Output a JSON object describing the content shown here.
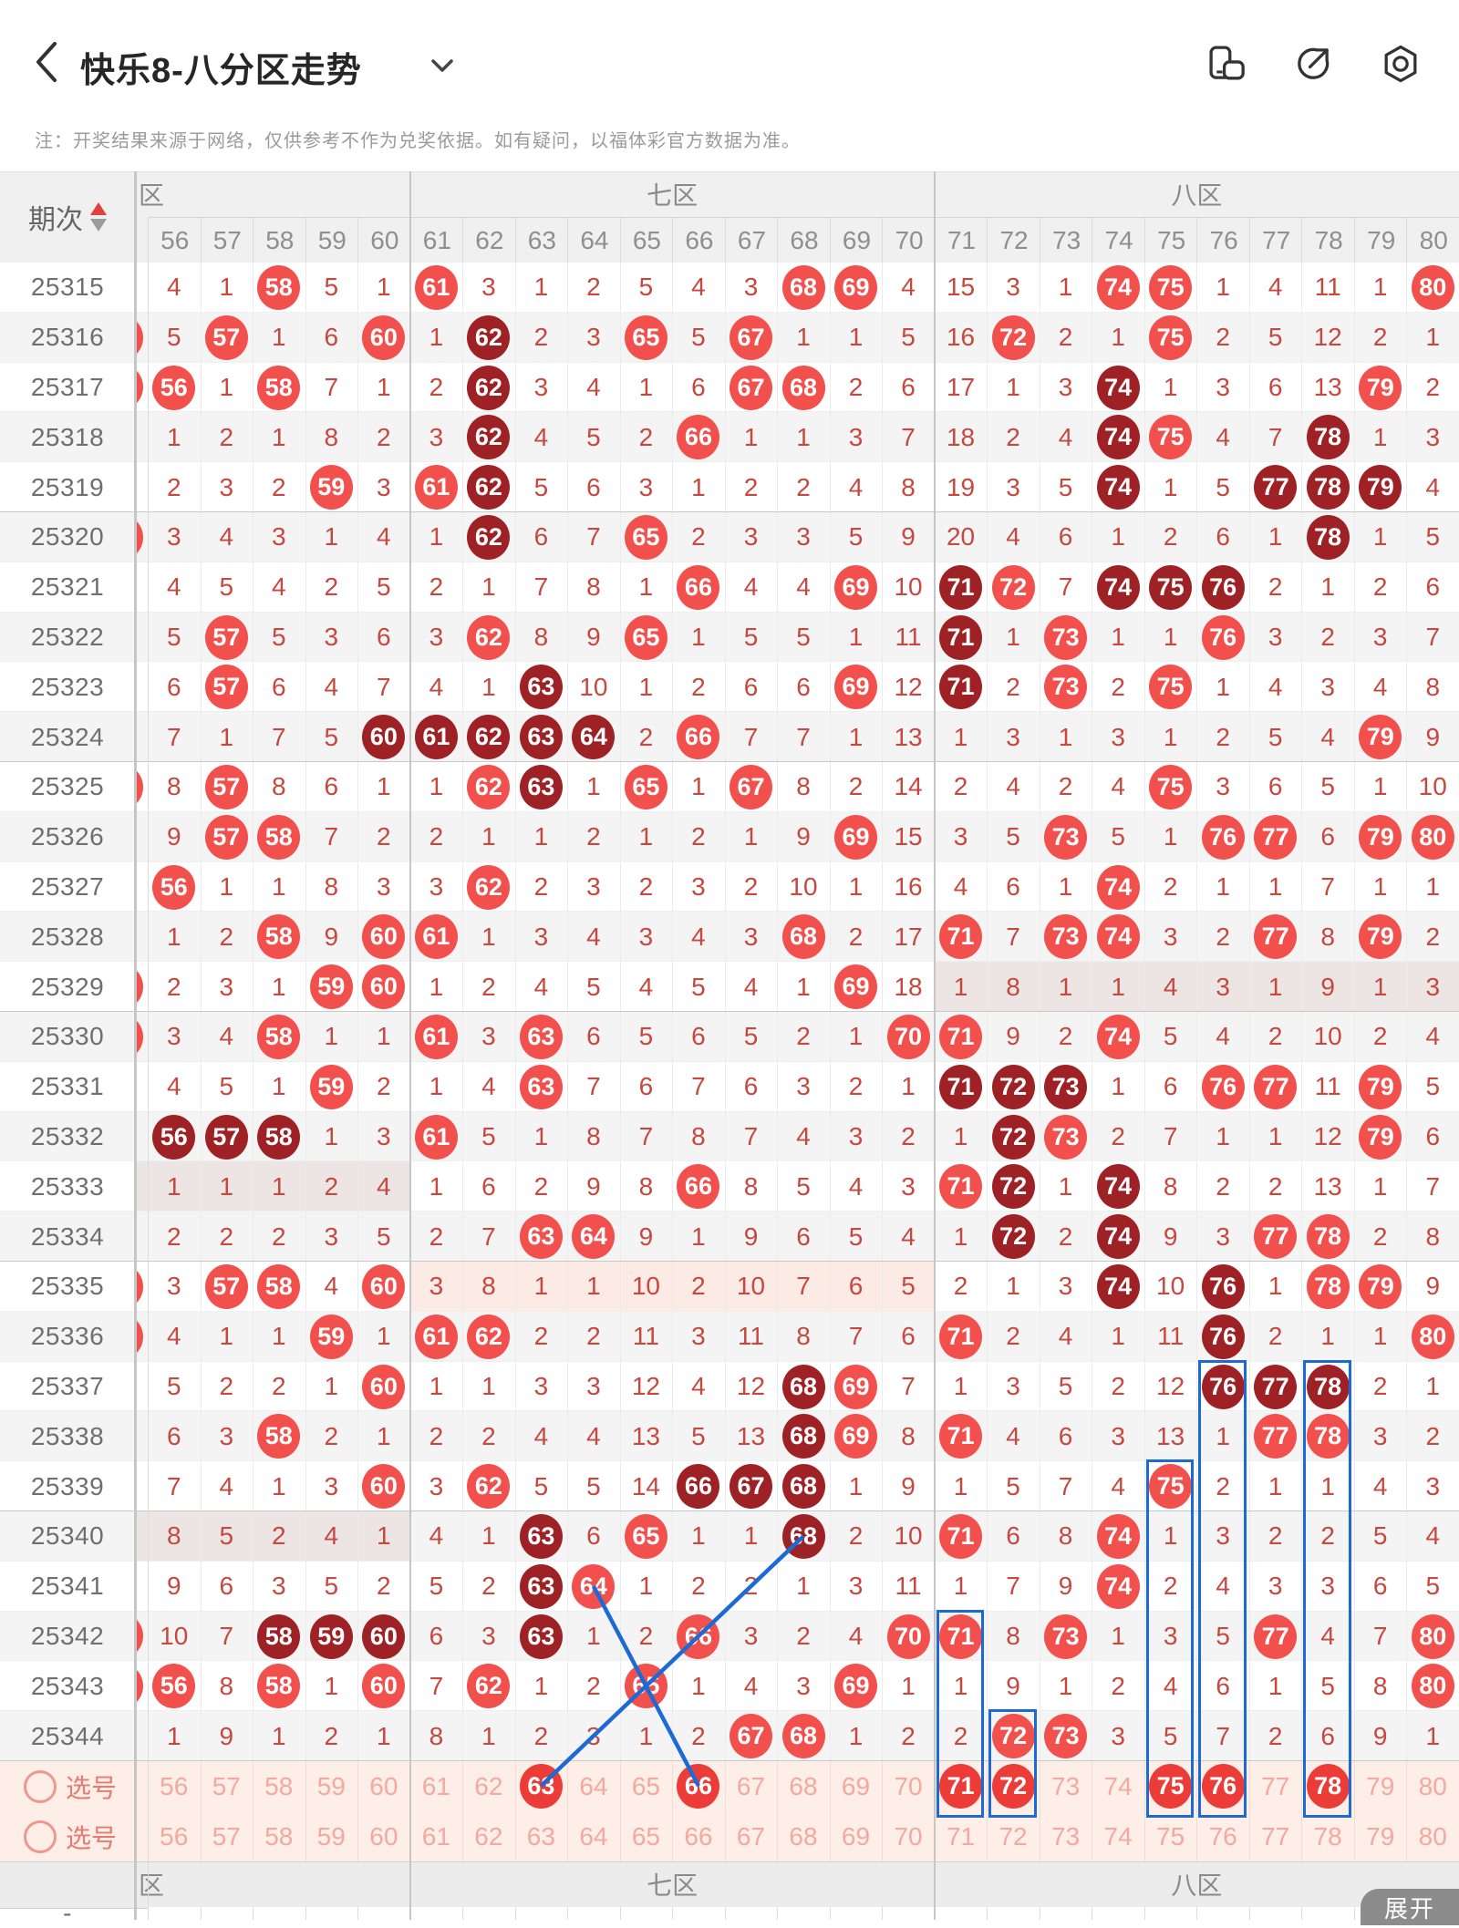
{
  "topbar": {
    "title": "快乐8-八分区走势",
    "back_icon": "chevron-left",
    "dropdown_icon": "chevron-down",
    "right_icons": [
      "screen-rotate-icon",
      "share-icon",
      "settings-icon"
    ]
  },
  "note": "注：开奖结果来源于网络，仅供参考不作为兑奖依据。如有疑问，以福体彩官方数据为准。",
  "table": {
    "period_header": "期次",
    "sort_icon": "sort-arrows",
    "zones": [
      {
        "label": "区",
        "start": 0,
        "end": 5,
        "align": "left"
      },
      {
        "label": "七区",
        "start": 5,
        "end": 15,
        "align": "center"
      },
      {
        "label": "八区",
        "start": 15,
        "end": 25,
        "align": "center"
      }
    ],
    "columns": [
      56,
      57,
      58,
      59,
      60,
      61,
      62,
      63,
      64,
      65,
      66,
      67,
      68,
      69,
      70,
      71,
      72,
      73,
      74,
      75,
      76,
      77,
      78,
      79,
      80
    ],
    "rows": [
      {
        "period": "25315",
        "sliver": false,
        "tint": null,
        "cells": [
          "4",
          "1",
          "58L",
          "5",
          "1",
          "61L",
          "3",
          "1",
          "2",
          "5",
          "4",
          "3",
          "68L",
          "69L",
          "4",
          "15",
          "3",
          "1",
          "74L",
          "75L",
          "1",
          "4",
          "11",
          "1",
          "80L"
        ]
      },
      {
        "period": "25316",
        "sliver": true,
        "tint": null,
        "cells": [
          "5",
          "57L",
          "1",
          "6",
          "60L",
          "1",
          "62D",
          "2",
          "3",
          "65L",
          "5",
          "67L",
          "1",
          "1",
          "5",
          "16",
          "72L",
          "2",
          "1",
          "75L",
          "2",
          "5",
          "12",
          "2",
          "1"
        ]
      },
      {
        "period": "25317",
        "sliver": true,
        "tint": null,
        "cells": [
          "56L",
          "1",
          "58L",
          "7",
          "1",
          "2",
          "62D",
          "3",
          "4",
          "1",
          "6",
          "67L",
          "68L",
          "2",
          "6",
          "17",
          "1",
          "3",
          "74D",
          "1",
          "3",
          "6",
          "13",
          "79L",
          "2"
        ]
      },
      {
        "period": "25318",
        "sliver": false,
        "tint": null,
        "cells": [
          "1",
          "2",
          "1",
          "8",
          "2",
          "3",
          "62D",
          "4",
          "5",
          "2",
          "66L",
          "1",
          "1",
          "3",
          "7",
          "18",
          "2",
          "4",
          "74D",
          "75L",
          "4",
          "7",
          "78D",
          "1",
          "3"
        ]
      },
      {
        "period": "25319",
        "sliver": false,
        "tint": null,
        "cells": [
          "2",
          "3",
          "2",
          "59L",
          "3",
          "61L",
          "62D",
          "5",
          "6",
          "3",
          "1",
          "2",
          "2",
          "4",
          "8",
          "19",
          "3",
          "5",
          "74D",
          "1",
          "5",
          "77D",
          "78D",
          "79D",
          "4"
        ]
      },
      {
        "period": "25320",
        "sliver": true,
        "tint": null,
        "cells": [
          "3",
          "4",
          "3",
          "1",
          "4",
          "1",
          "62D",
          "6",
          "7",
          "65L",
          "2",
          "3",
          "3",
          "5",
          "9",
          "20",
          "4",
          "6",
          "1",
          "2",
          "6",
          "1",
          "78D",
          "1",
          "5"
        ]
      },
      {
        "period": "25321",
        "sliver": false,
        "tint": null,
        "cells": [
          "4",
          "5",
          "4",
          "2",
          "5",
          "2",
          "1",
          "7",
          "8",
          "1",
          "66L",
          "4",
          "4",
          "69L",
          "10",
          "71D",
          "72L",
          "7",
          "74D",
          "75D",
          "76D",
          "2",
          "1",
          "2",
          "6"
        ]
      },
      {
        "period": "25322",
        "sliver": false,
        "tint": null,
        "cells": [
          "5",
          "57L",
          "5",
          "3",
          "6",
          "3",
          "62L",
          "8",
          "9",
          "65L",
          "1",
          "5",
          "5",
          "1",
          "11",
          "71D",
          "1",
          "73L",
          "1",
          "1",
          "76L",
          "3",
          "2",
          "3",
          "7"
        ]
      },
      {
        "period": "25323",
        "sliver": false,
        "tint": null,
        "cells": [
          "6",
          "57L",
          "6",
          "4",
          "7",
          "4",
          "1",
          "63D",
          "10",
          "1",
          "2",
          "6",
          "6",
          "69L",
          "12",
          "71D",
          "2",
          "73L",
          "2",
          "75L",
          "1",
          "4",
          "3",
          "4",
          "8"
        ]
      },
      {
        "period": "25324",
        "sliver": false,
        "tint": null,
        "cells": [
          "7",
          "1",
          "7",
          "5",
          "60D",
          "61D",
          "62D",
          "63D",
          "64D",
          "2",
          "66L",
          "7",
          "7",
          "1",
          "13",
          "1",
          "3",
          "1",
          "3",
          "1",
          "2",
          "5",
          "4",
          "79L",
          "9"
        ]
      },
      {
        "period": "25325",
        "sliver": true,
        "tint": null,
        "cells": [
          "8",
          "57L",
          "8",
          "6",
          "1",
          "1",
          "62L",
          "63D",
          "1",
          "65L",
          "1",
          "67L",
          "8",
          "2",
          "14",
          "2",
          "4",
          "2",
          "4",
          "75L",
          "3",
          "6",
          "5",
          "1",
          "10"
        ]
      },
      {
        "period": "25326",
        "sliver": false,
        "tint": null,
        "cells": [
          "9",
          "57L",
          "58L",
          "7",
          "2",
          "2",
          "1",
          "1",
          "2",
          "1",
          "2",
          "1",
          "9",
          "69L",
          "15",
          "3",
          "5",
          "73L",
          "5",
          "1",
          "76L",
          "77L",
          "6",
          "79L",
          "80L"
        ]
      },
      {
        "period": "25327",
        "sliver": false,
        "tint": null,
        "cells": [
          "56L",
          "1",
          "1",
          "8",
          "3",
          "3",
          "62L",
          "2",
          "3",
          "2",
          "3",
          "2",
          "10",
          "1",
          "16",
          "4",
          "6",
          "1",
          "74L",
          "2",
          "1",
          "1",
          "7",
          "1",
          "1"
        ]
      },
      {
        "period": "25328",
        "sliver": false,
        "tint": null,
        "cells": [
          "1",
          "2",
          "58L",
          "9",
          "60L",
          "61L",
          "1",
          "3",
          "4",
          "3",
          "4",
          "3",
          "68L",
          "2",
          "17",
          "71L",
          "7",
          "73L",
          "74L",
          "3",
          "2",
          "77L",
          "8",
          "79L",
          "2"
        ]
      },
      {
        "period": "25329",
        "sliver": true,
        "tint": "zone8",
        "cells": [
          "2",
          "3",
          "1",
          "59L",
          "60L",
          "1",
          "2",
          "4",
          "5",
          "4",
          "5",
          "4",
          "1",
          "69L",
          "18",
          "1",
          "8",
          "1",
          "1",
          "4",
          "3",
          "1",
          "9",
          "1",
          "3"
        ]
      },
      {
        "period": "25330",
        "sliver": true,
        "tint": null,
        "cells": [
          "3",
          "4",
          "58L",
          "1",
          "1",
          "61L",
          "3",
          "63L",
          "6",
          "5",
          "6",
          "5",
          "2",
          "1",
          "70L",
          "71L",
          "9",
          "2",
          "74L",
          "5",
          "4",
          "2",
          "10",
          "2",
          "4"
        ]
      },
      {
        "period": "25331",
        "sliver": false,
        "tint": null,
        "cells": [
          "4",
          "5",
          "1",
          "59L",
          "2",
          "1",
          "4",
          "63L",
          "7",
          "6",
          "7",
          "6",
          "3",
          "2",
          "1",
          "71D",
          "72D",
          "73D",
          "1",
          "6",
          "76L",
          "77L",
          "11",
          "79L",
          "5"
        ]
      },
      {
        "period": "25332",
        "sliver": false,
        "tint": null,
        "cells": [
          "56D",
          "57D",
          "58D",
          "1",
          "3",
          "61L",
          "5",
          "1",
          "8",
          "7",
          "8",
          "7",
          "4",
          "3",
          "2",
          "1",
          "72D",
          "73L",
          "2",
          "7",
          "1",
          "1",
          "12",
          "79L",
          "6"
        ]
      },
      {
        "period": "25333",
        "sliver": false,
        "tint": "zone6",
        "cells": [
          "1",
          "1",
          "1",
          "2",
          "4",
          "1",
          "6",
          "2",
          "9",
          "8",
          "66L",
          "8",
          "5",
          "4",
          "3",
          "71L",
          "72D",
          "1",
          "74D",
          "8",
          "2",
          "2",
          "13",
          "1",
          "7"
        ]
      },
      {
        "period": "25334",
        "sliver": false,
        "tint": null,
        "cells": [
          "2",
          "2",
          "2",
          "3",
          "5",
          "2",
          "7",
          "63L",
          "64L",
          "9",
          "1",
          "9",
          "6",
          "5",
          "4",
          "1",
          "72D",
          "2",
          "74D",
          "9",
          "3",
          "77L",
          "78L",
          "2",
          "8"
        ]
      },
      {
        "period": "25335",
        "sliver": true,
        "tint": "zone7",
        "cells": [
          "3",
          "57L",
          "58L",
          "4",
          "60L",
          "3",
          "8",
          "1",
          "1",
          "10",
          "2",
          "10",
          "7",
          "6",
          "5",
          "2",
          "1",
          "3",
          "74D",
          "10",
          "76D",
          "1",
          "78L",
          "79L",
          "9"
        ]
      },
      {
        "period": "25336",
        "sliver": true,
        "tint": null,
        "cells": [
          "4",
          "1",
          "1",
          "59L",
          "1",
          "61L",
          "62L",
          "2",
          "2",
          "11",
          "3",
          "11",
          "8",
          "7",
          "6",
          "71L",
          "2",
          "4",
          "1",
          "11",
          "76D",
          "2",
          "1",
          "1",
          "80L"
        ]
      },
      {
        "period": "25337",
        "sliver": false,
        "tint": null,
        "cells": [
          "5",
          "2",
          "2",
          "1",
          "60L",
          "1",
          "1",
          "3",
          "3",
          "12",
          "4",
          "12",
          "68D",
          "69L",
          "7",
          "1",
          "3",
          "5",
          "2",
          "12",
          "76D",
          "77D",
          "78D",
          "2",
          "1"
        ]
      },
      {
        "period": "25338",
        "sliver": false,
        "tint": null,
        "cells": [
          "6",
          "3",
          "58L",
          "2",
          "1",
          "2",
          "2",
          "4",
          "4",
          "13",
          "5",
          "13",
          "68D",
          "69L",
          "8",
          "71L",
          "4",
          "6",
          "3",
          "13",
          "1",
          "77L",
          "78L",
          "3",
          "2"
        ]
      },
      {
        "period": "25339",
        "sliver": false,
        "tint": null,
        "cells": [
          "7",
          "4",
          "1",
          "3",
          "60L",
          "3",
          "62L",
          "5",
          "5",
          "14",
          "66D",
          "67D",
          "68D",
          "1",
          "9",
          "1",
          "5",
          "7",
          "4",
          "75L",
          "2",
          "1",
          "1",
          "4",
          "3"
        ]
      },
      {
        "period": "25340",
        "sliver": false,
        "tint": "zone6",
        "cells": [
          "8",
          "5",
          "2",
          "4",
          "1",
          "4",
          "1",
          "63D",
          "6",
          "65L",
          "1",
          "1",
          "68D",
          "2",
          "10",
          "71L",
          "6",
          "8",
          "74L",
          "1",
          "3",
          "2",
          "2",
          "5",
          "4"
        ]
      },
      {
        "period": "25341",
        "sliver": false,
        "tint": null,
        "cells": [
          "9",
          "6",
          "3",
          "5",
          "2",
          "5",
          "2",
          "63D",
          "64L",
          "1",
          "2",
          "2",
          "1",
          "3",
          "11",
          "1",
          "7",
          "9",
          "74L",
          "2",
          "4",
          "3",
          "3",
          "6",
          "5"
        ]
      },
      {
        "period": "25342",
        "sliver": true,
        "tint": null,
        "cells": [
          "10",
          "7",
          "58D",
          "59D",
          "60D",
          "6",
          "3",
          "63D",
          "1",
          "2",
          "66L",
          "3",
          "2",
          "4",
          "70L",
          "71L",
          "8",
          "73L",
          "1",
          "3",
          "5",
          "77L",
          "4",
          "7",
          "80L"
        ]
      },
      {
        "period": "25343",
        "sliver": true,
        "tint": null,
        "cells": [
          "56L",
          "8",
          "58L",
          "1",
          "60L",
          "7",
          "62L",
          "1",
          "2",
          "65L",
          "1",
          "4",
          "3",
          "69L",
          "1",
          "1",
          "9",
          "1",
          "2",
          "4",
          "6",
          "1",
          "5",
          "8",
          "80L"
        ]
      },
      {
        "period": "25344",
        "sliver": false,
        "tint": null,
        "cells": [
          "1",
          "9",
          "1",
          "2",
          "1",
          "8",
          "1",
          "2",
          "3",
          "1",
          "2",
          "67L",
          "68L",
          "1",
          "2",
          "2",
          "72L",
          "73L",
          "3",
          "5",
          "7",
          "2",
          "6",
          "9",
          "1"
        ]
      }
    ],
    "pick_rows": [
      {
        "label": "选号",
        "selected": [
          63,
          66,
          71,
          72,
          75,
          76,
          78
        ]
      },
      {
        "label": "选号",
        "selected": []
      }
    ],
    "footer_zones": [
      "区",
      "七区",
      "八区"
    ],
    "partial_row_label": "-",
    "expand_button": "展开"
  },
  "annotations": {
    "boxes": [
      {
        "col": 75,
        "from_period": "25339"
      },
      {
        "col": 76,
        "from_period": "25337"
      },
      {
        "col": 78,
        "from_period": "25337"
      },
      {
        "col": 71,
        "from_period": "25342"
      },
      {
        "col": 72,
        "from_period": "25344"
      }
    ],
    "lines": [
      {
        "from": {
          "col": 68,
          "period": "25340"
        },
        "to": {
          "col": 63,
          "period": "pick1"
        }
      },
      {
        "from": {
          "col": 64,
          "period": "25341"
        },
        "to": {
          "col": 66,
          "period": "pick1"
        }
      }
    ]
  },
  "colors": {
    "light_circle": "#f1504d",
    "dark_circle": "#9e2125",
    "pick_circle": "#ec3c37",
    "miss_text": "#c7483f",
    "blue": "#1d6ad4",
    "pick_row_bg": "#fdeee8",
    "tint_gray": "#ece5e3",
    "tint_pink": "#fceae4",
    "stripe": "#f4f4f4",
    "pick_faint": "#f4a89f",
    "header_bg": "#f0f0f0",
    "footer_bg": "#ececec"
  }
}
